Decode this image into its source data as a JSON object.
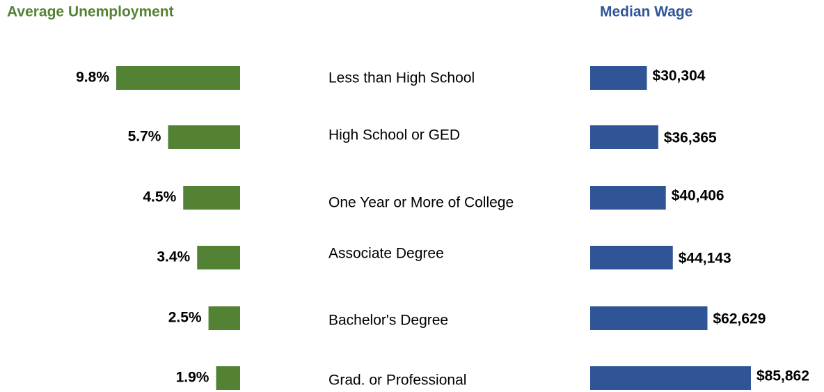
{
  "chart_data": {
    "type": "bar",
    "orientation": "horizontal",
    "categories": [
      "Less than High School",
      "High School or GED",
      "One Year or More of College",
      "Associate Degree",
      "Bachelor's Degree",
      "Grad. or Professional"
    ],
    "series": [
      {
        "name": "Average Unemployment",
        "color": "#548235",
        "values": [
          9.8,
          5.7,
          4.5,
          3.4,
          2.5,
          1.9
        ],
        "value_labels": [
          "9.8%",
          "5.7%",
          "4.5%",
          "3.4%",
          "2.5%",
          "1.9%"
        ]
      },
      {
        "name": "Median Wage",
        "color": "#2f5597",
        "values": [
          30304,
          36365,
          40406,
          44143,
          62629,
          85862
        ],
        "value_labels": [
          "$30,304",
          "$36,365",
          "$40,406",
          "$44,143",
          "$62,629",
          "$85,862"
        ]
      }
    ]
  }
}
